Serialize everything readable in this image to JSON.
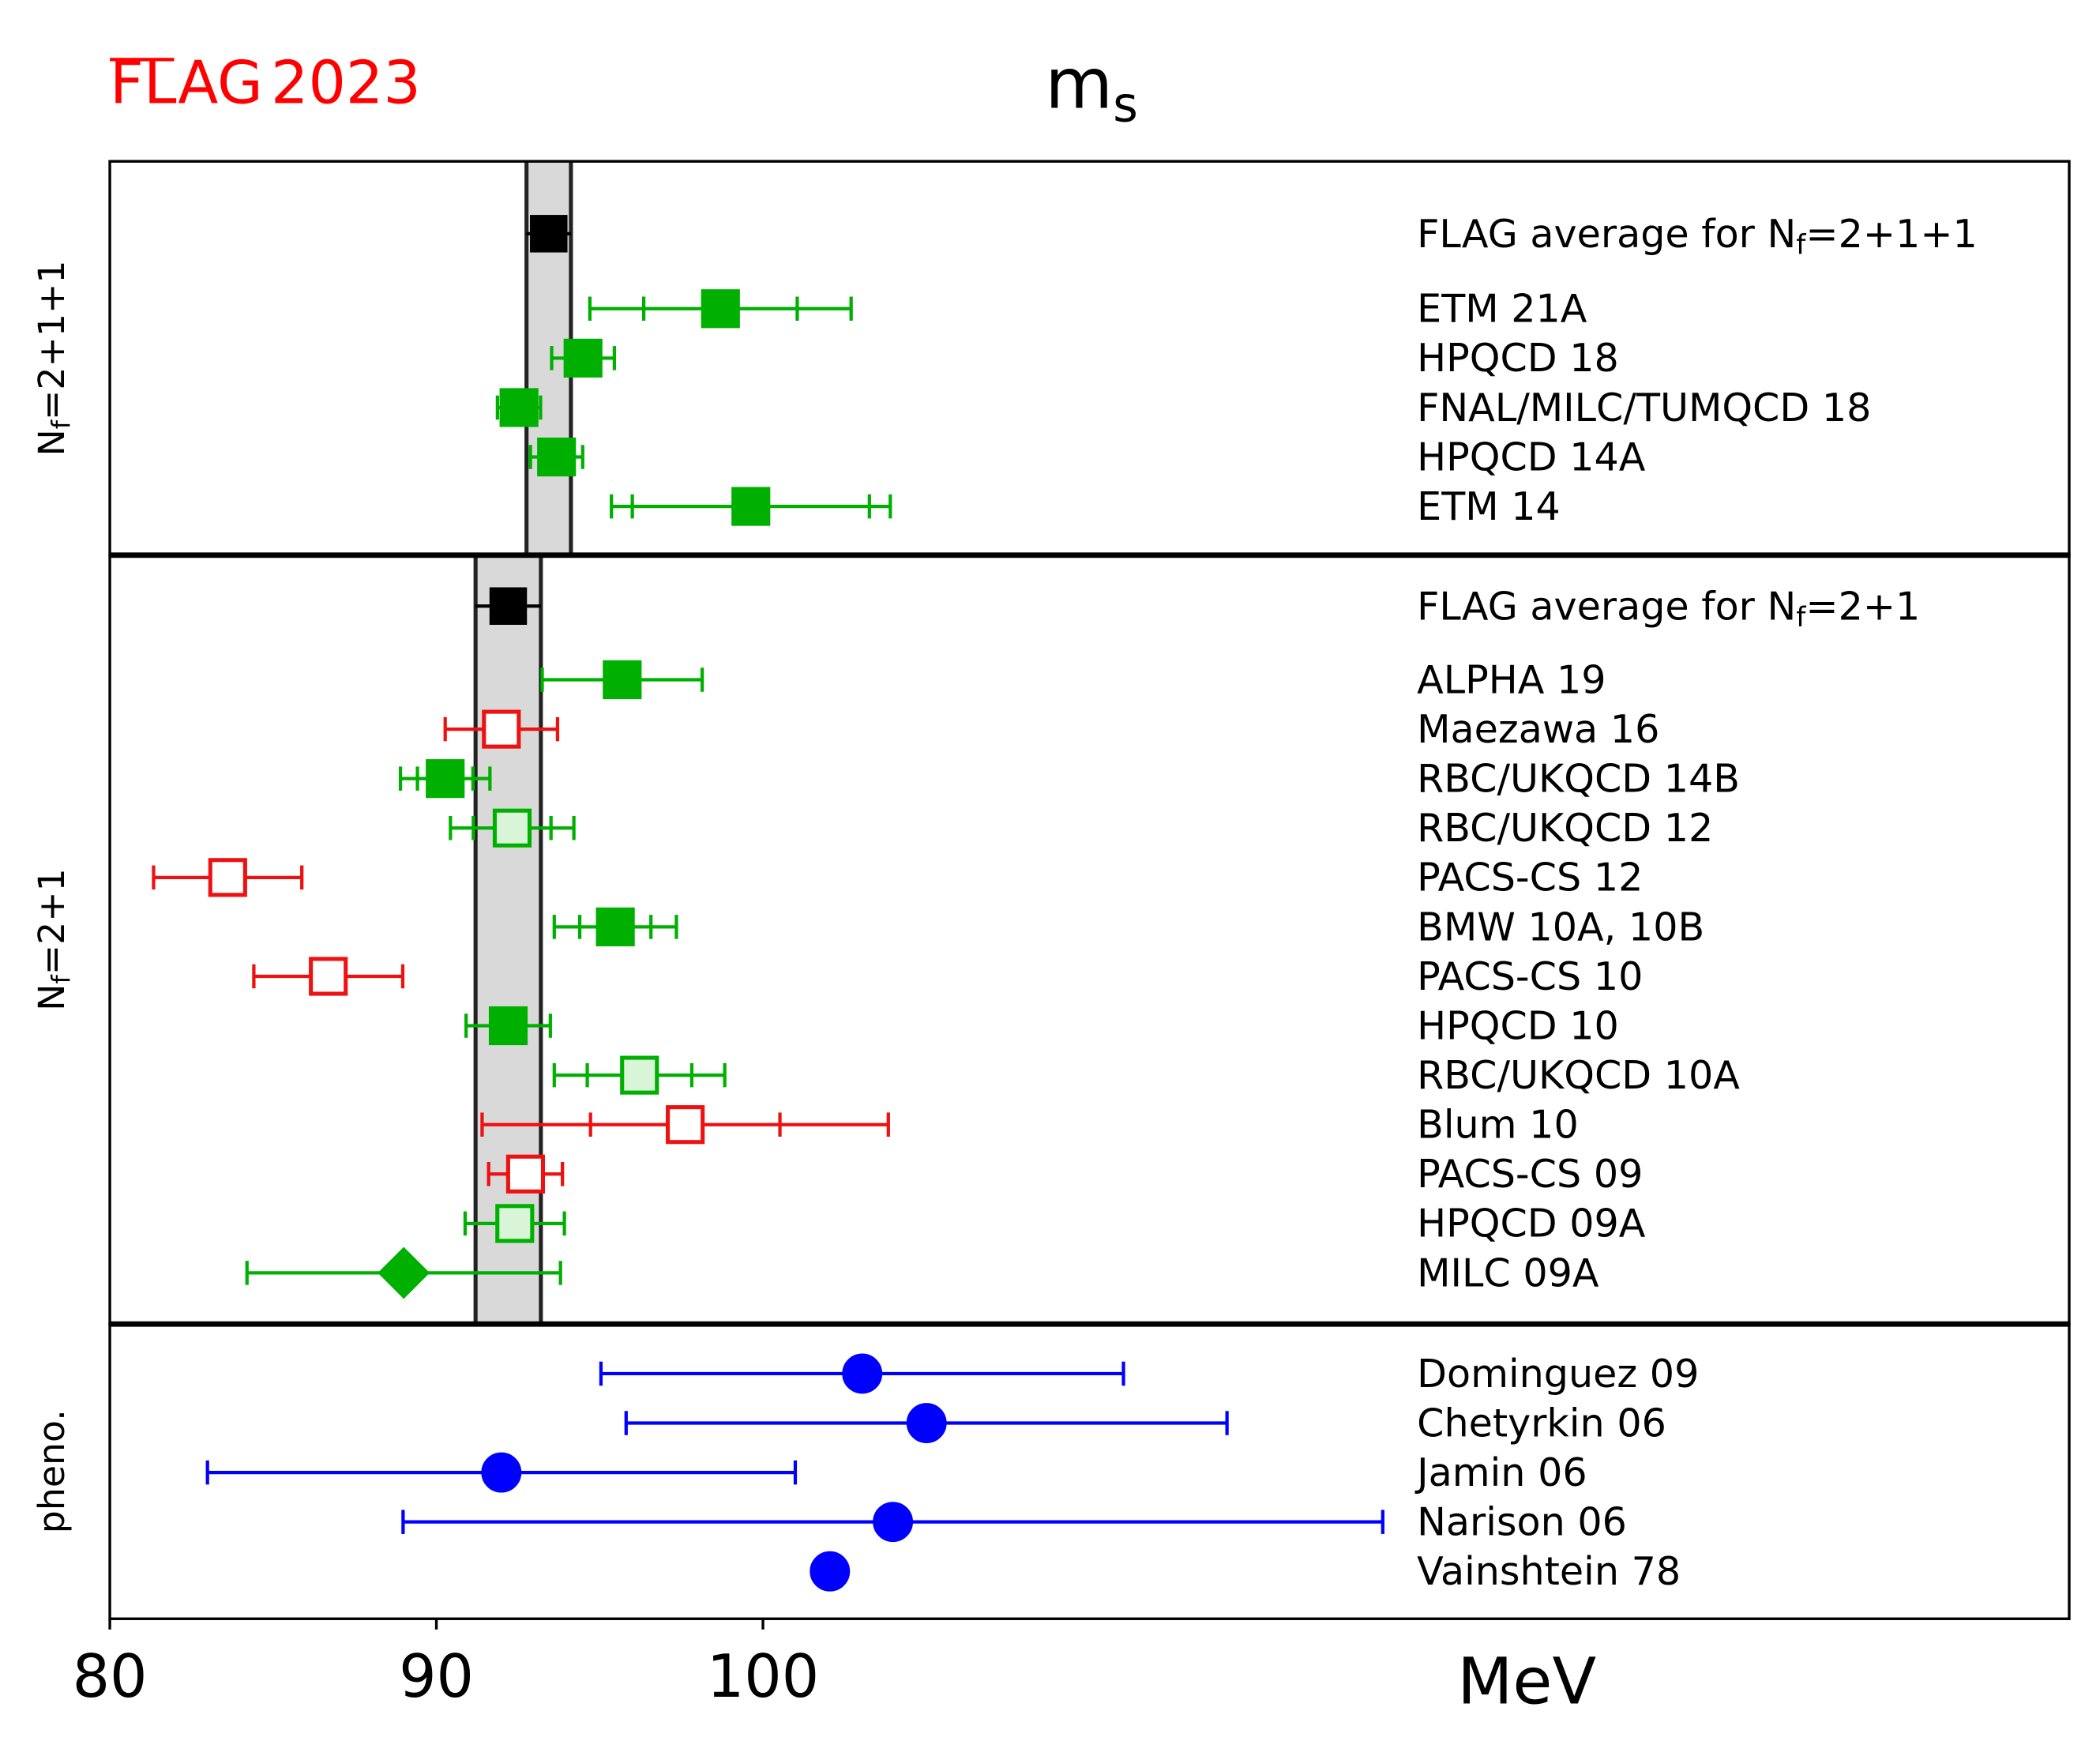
{
  "chart_data": {
    "type": "errorbar",
    "logo": "FLAG",
    "logo_year": "2023",
    "title": "m",
    "title_sub": "s",
    "xlabel": "MeV",
    "xlim": [
      80,
      140
    ],
    "xticks": [
      80,
      90,
      100
    ],
    "panels": [
      {
        "label_parts": [
          {
            "text": "N"
          },
          {
            "text": "f",
            "sub": true
          },
          {
            "text": "=2+1+1"
          }
        ],
        "average": {
          "label_parts": [
            {
              "text": "FLAG average for N"
            },
            {
              "text": "f",
              "sub": true
            },
            {
              "text": "=2+1+1"
            }
          ],
          "value": 93.44,
          "error": 0.68,
          "color": "#000000"
        },
        "rows": [
          {
            "name": "ETM 21A",
            "value": 98.7,
            "error": 4.0,
            "stat_error": 2.35,
            "color": "#00b000",
            "fill": "full",
            "marker": "square"
          },
          {
            "name": "HPQCD 18",
            "value": 94.49,
            "error": 0.96,
            "stat_error": null,
            "color": "#00b000",
            "fill": "full",
            "marker": "square"
          },
          {
            "name": "FNAL/MILC/TUMQCD 18",
            "value": 92.53,
            "error": 0.66,
            "stat_error": null,
            "color": "#00b000",
            "fill": "full",
            "marker": "square"
          },
          {
            "name": "HPQCD 14A",
            "value": 93.68,
            "error": 0.8,
            "stat_error": null,
            "color": "#00b000",
            "fill": "full",
            "marker": "square"
          },
          {
            "name": "ETM 14",
            "value": 99.63,
            "error": 4.27,
            "stat_error": 3.63,
            "color": "#00b000",
            "fill": "full",
            "marker": "square"
          }
        ]
      },
      {
        "label_parts": [
          {
            "text": "N"
          },
          {
            "text": "f",
            "sub": true
          },
          {
            "text": "=2+1"
          }
        ],
        "average": {
          "label_parts": [
            {
              "text": "FLAG average for N"
            },
            {
              "text": "f",
              "sub": true
            },
            {
              "text": "=2+1"
            }
          ],
          "value": 92.2,
          "error": 1.0,
          "color": "#000000"
        },
        "rows": [
          {
            "name": "ALPHA 19",
            "value": 95.69,
            "error": 2.45,
            "stat_error": null,
            "color": "#00b000",
            "fill": "full",
            "marker": "square"
          },
          {
            "name": "Maezawa 16",
            "value": 91.99,
            "error": 1.72,
            "stat_error": null,
            "color": "#ee1111",
            "fill": "open",
            "marker": "square"
          },
          {
            "name": "RBC/UKQCD 14B",
            "value": 90.27,
            "error": 1.37,
            "stat_error": 0.85,
            "color": "#00b000",
            "fill": "full",
            "marker": "square"
          },
          {
            "name": "RBC/UKQCD 12",
            "value": 92.32,
            "error": 1.89,
            "stat_error": 1.19,
            "color": "#00b000",
            "fill": "light",
            "marker": "square"
          },
          {
            "name": "PACS-CS 12",
            "value": 83.61,
            "error": 2.27,
            "stat_error": null,
            "color": "#ee1111",
            "fill": "open",
            "marker": "square"
          },
          {
            "name": "BMW 10A, 10B",
            "value": 95.48,
            "error": 1.87,
            "stat_error": 1.09,
            "color": "#00b000",
            "fill": "full",
            "marker": "square"
          },
          {
            "name": "PACS-CS 10",
            "value": 86.69,
            "error": 2.28,
            "stat_error": null,
            "color": "#ee1111",
            "fill": "open",
            "marker": "square"
          },
          {
            "name": "HPQCD 10",
            "value": 92.2,
            "error": 1.29,
            "stat_error": null,
            "color": "#00b000",
            "fill": "full",
            "marker": "square"
          },
          {
            "name": "RBC/UKQCD 10A",
            "value": 96.22,
            "error": 2.61,
            "stat_error": 1.6,
            "color": "#00b000",
            "fill": "light",
            "marker": "square"
          },
          {
            "name": "Blum 10",
            "value": 97.62,
            "error": 6.22,
            "stat_error": 2.9,
            "color": "#ee1111",
            "fill": "open",
            "marker": "square"
          },
          {
            "name": "PACS-CS 09",
            "value": 92.73,
            "error": 1.13,
            "stat_error": null,
            "color": "#ee1111",
            "fill": "open",
            "marker": "square"
          },
          {
            "name": "HPQCD 09A",
            "value": 92.4,
            "error": 1.52,
            "stat_error": null,
            "color": "#00b000",
            "fill": "light",
            "marker": "square"
          },
          {
            "name": "MILC 09A",
            "value": 89.0,
            "error": 4.8,
            "stat_error": null,
            "color": "#00b000",
            "fill": "full",
            "marker": "diamond"
          }
        ]
      },
      {
        "label_parts": [
          {
            "text": "pheno."
          }
        ],
        "average": null,
        "rows": [
          {
            "name": "Dominguez 09",
            "value": 103.04,
            "error": 8.0,
            "stat_error": null,
            "color": "#0000ff",
            "fill": "full",
            "marker": "circle"
          },
          {
            "name": "Chetyrkin 06",
            "value": 105.01,
            "error": 9.2,
            "stat_error": null,
            "color": "#0000ff",
            "fill": "full",
            "marker": "circle"
          },
          {
            "name": "Jamin 06",
            "value": 91.99,
            "error": 9.0,
            "stat_error": null,
            "color": "#0000ff",
            "fill": "full",
            "marker": "circle"
          },
          {
            "name": "Narison 06",
            "value": 103.98,
            "error": 15.0,
            "stat_error": null,
            "color": "#0000ff",
            "fill": "full",
            "marker": "circle"
          },
          {
            "name": "Vainshtein 78",
            "value": 102.05,
            "error": null,
            "stat_error": null,
            "color": "#0000ff",
            "fill": "full",
            "marker": "circle"
          }
        ]
      }
    ]
  }
}
